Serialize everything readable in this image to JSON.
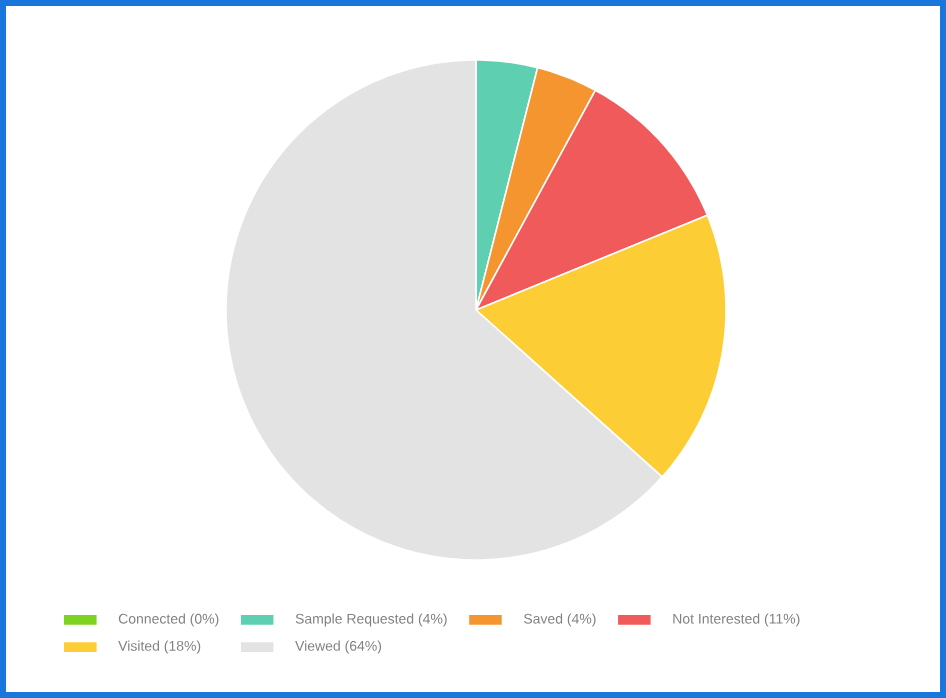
{
  "chart_data": {
    "type": "pie",
    "categories": [
      "Connected (0%)",
      "Sample Requested (4%)",
      "Saved (4%)",
      "Not Interested (11%)",
      "Visited (18%)",
      "Viewed (64%)"
    ],
    "values": [
      0,
      4,
      4,
      11,
      18,
      64
    ],
    "colors": [
      "#7ed321",
      "#5ecfb1",
      "#f5952f",
      "#f05a5a",
      "#fccd34",
      "#e3e3e3"
    ],
    "legend": "bottom"
  }
}
